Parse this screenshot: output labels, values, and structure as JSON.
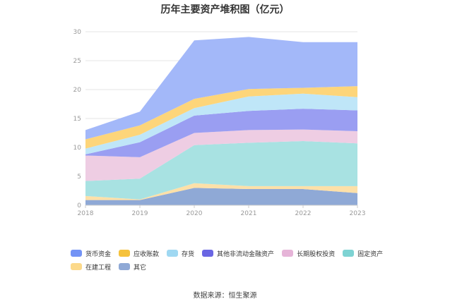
{
  "chart_data": {
    "type": "area",
    "stacked": true,
    "title": "历年主要资产堆积图（亿元）",
    "categories": [
      "2018",
      "2019",
      "2020",
      "2021",
      "2022",
      "2023"
    ],
    "ylim": [
      0,
      30
    ],
    "yticks": [
      0,
      5,
      10,
      15,
      20,
      25,
      30
    ],
    "grid": true,
    "legend_position": "bottom",
    "series": [
      {
        "name": "其它",
        "color": "#8fa9d6",
        "values": [
          0.9,
          0.9,
          3.0,
          2.8,
          2.8,
          2.1
        ]
      },
      {
        "name": "在建工程",
        "color": "#fde0a8",
        "values": [
          0.7,
          0.1,
          0.8,
          0.5,
          0.5,
          1.2
        ]
      },
      {
        "name": "固定资产",
        "color": "#a8e2e2",
        "values": [
          2.6,
          3.6,
          6.6,
          7.5,
          7.8,
          7.4
        ]
      },
      {
        "name": "长期股权投资",
        "color": "#eecde3",
        "values": [
          4.4,
          3.7,
          2.1,
          2.2,
          2.0,
          2.1
        ]
      },
      {
        "name": "其他非流动金融资产",
        "color": "#9a9ef2",
        "values": [
          0.2,
          2.6,
          3.0,
          3.3,
          3.6,
          3.6
        ]
      },
      {
        "name": "存货",
        "color": "#bfe6f8",
        "values": [
          1.0,
          1.3,
          1.3,
          2.5,
          2.6,
          2.3
        ]
      },
      {
        "name": "应收账款",
        "color": "#fdd57a",
        "values": [
          1.6,
          1.6,
          1.6,
          1.3,
          1.0,
          1.9
        ]
      },
      {
        "name": "货币资金",
        "color": "#a3b8f9",
        "values": [
          1.6,
          2.4,
          10.1,
          9.0,
          7.9,
          7.6
        ]
      }
    ]
  },
  "legend": [
    {
      "name": "货币资金",
      "color": "#7393f5"
    },
    {
      "name": "应收账款",
      "color": "#f5c23c"
    },
    {
      "name": "存货",
      "color": "#9fd8f2"
    },
    {
      "name": "其他非流动金融资产",
      "color": "#6a66e3"
    },
    {
      "name": "长期股权投资",
      "color": "#e6b4d8"
    },
    {
      "name": "固定资产",
      "color": "#7ed3d3"
    },
    {
      "name": "在建工程",
      "color": "#fcd98a"
    },
    {
      "name": "其它",
      "color": "#8fa9d6"
    }
  ],
  "source": "数据来源：恒生聚源"
}
